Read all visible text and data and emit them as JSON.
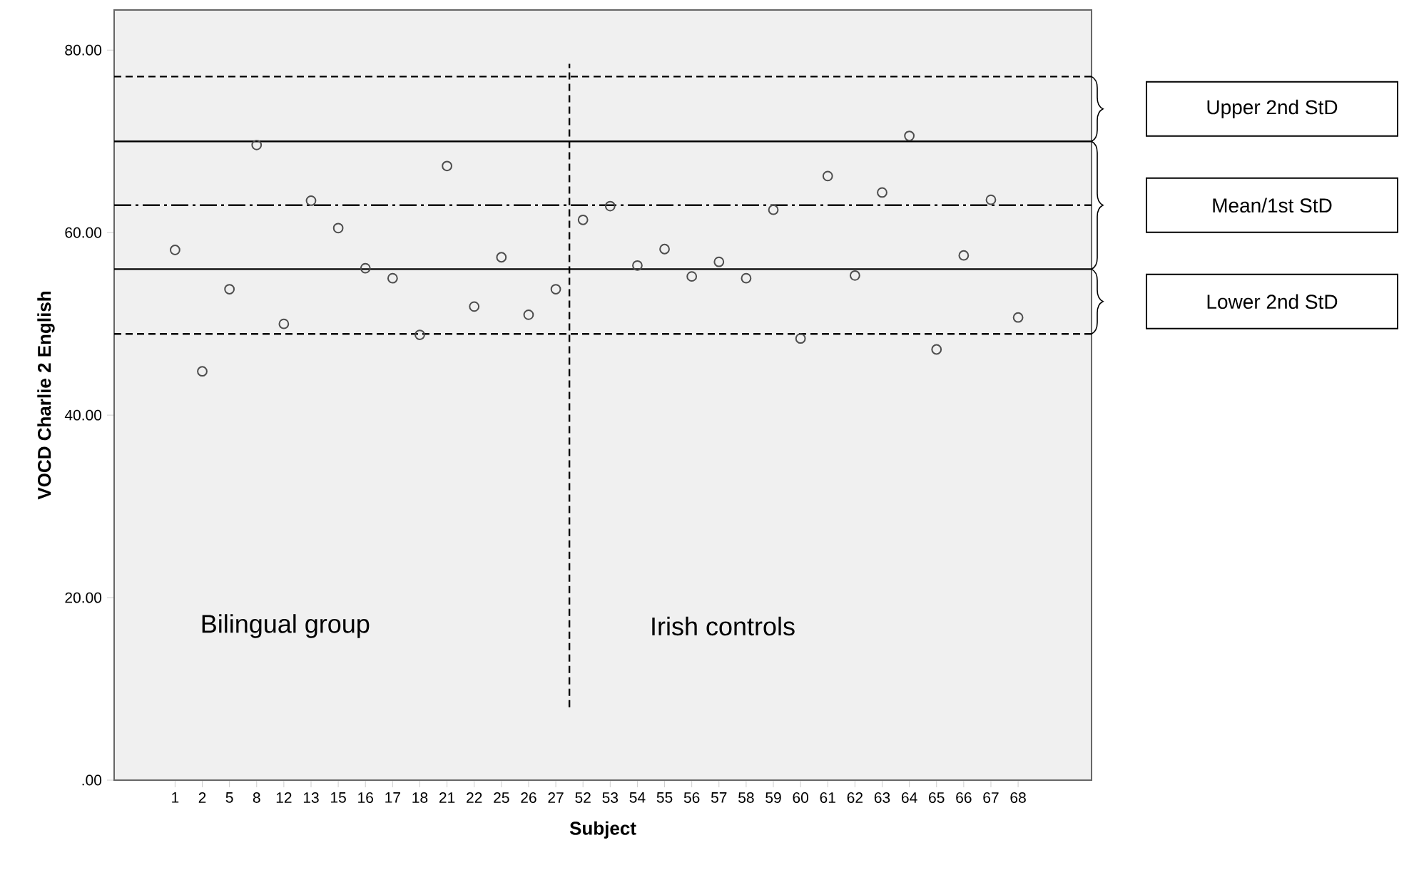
{
  "chart_data": {
    "type": "scatter",
    "xlabel": "Subject",
    "ylabel": "VOCD Charlie 2 English",
    "categories": [
      "1",
      "2",
      "5",
      "8",
      "12",
      "13",
      "15",
      "16",
      "17",
      "18",
      "21",
      "22",
      "25",
      "26",
      "27",
      "52",
      "53",
      "54",
      "55",
      "56",
      "57",
      "58",
      "59",
      "60",
      "61",
      "62",
      "63",
      "64",
      "65",
      "66",
      "67",
      "68"
    ],
    "series": [
      {
        "color": "#4d4d4d",
        "values": [
          58.1,
          44.8,
          53.8,
          69.6,
          50.0,
          63.5,
          60.5,
          56.1,
          55.0,
          48.8,
          67.3,
          51.9,
          57.3,
          51.0,
          53.8,
          61.4,
          62.9,
          56.4,
          58.2,
          55.2,
          56.8,
          55.0,
          62.5,
          48.4,
          66.2,
          55.3,
          64.4,
          70.6,
          47.2,
          57.5,
          63.6,
          50.7
        ]
      }
    ],
    "marker": "circle",
    "ylim": [
      0,
      84.4
    ],
    "yticks": [
      {
        "value": 0,
        "label": ".00"
      },
      {
        "value": 20,
        "label": "20.00"
      },
      {
        "value": 40,
        "label": "40.00"
      },
      {
        "value": 60,
        "label": "60.00"
      },
      {
        "value": 80,
        "label": "80.00"
      }
    ],
    "ref_lines": [
      {
        "axis": "y",
        "value": 77.1,
        "line_style": "dashed"
      },
      {
        "axis": "y",
        "value": 70.0,
        "line_style": "solid"
      },
      {
        "axis": "y",
        "value": 63.0,
        "line_style": "dashdot"
      },
      {
        "axis": "y",
        "value": 56.0,
        "line_style": "solid"
      },
      {
        "axis": "y",
        "value": 48.9,
        "line_style": "dashed"
      }
    ],
    "annotations": [
      "Bilingual group",
      "Irish controls",
      "Upper 2nd StD",
      "Mean/1st StD",
      "Lower 2nd StD"
    ],
    "grid": false
  }
}
